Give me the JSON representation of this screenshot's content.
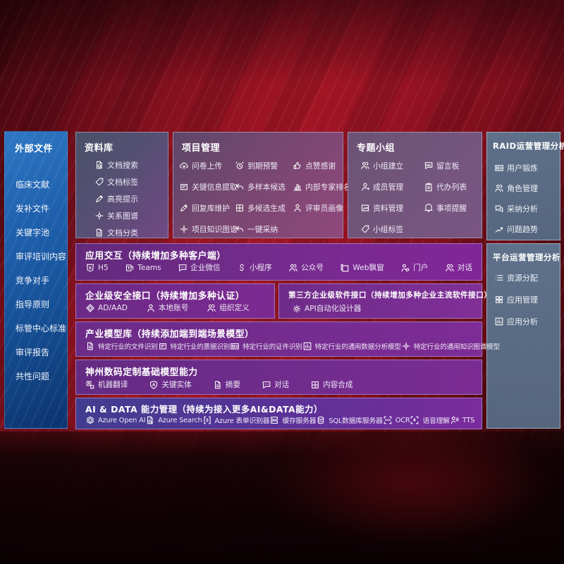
{
  "sidebar": {
    "title": "外部文件",
    "items": [
      "临床文献",
      "发补文件",
      "关键字池",
      "审评培训内容",
      "竞争对手",
      "指导原则",
      "标管中心标准",
      "审评报告",
      "共性问题"
    ]
  },
  "library": {
    "title": "资料库",
    "items": [
      {
        "icon": "doc-search-icon",
        "label": "文档搜索"
      },
      {
        "icon": "doc-tag-icon",
        "label": "文档标签"
      },
      {
        "icon": "highlight-pen-icon",
        "label": "高亮提示"
      },
      {
        "icon": "relation-graph-icon",
        "label": "关系图谱"
      },
      {
        "icon": "doc-classify-icon",
        "label": "文档分类"
      }
    ]
  },
  "project": {
    "title": "项目管理",
    "col1": [
      {
        "icon": "survey-upload-icon",
        "label": "问卷上传"
      },
      {
        "icon": "info-extract-icon",
        "label": "关键信息提取"
      },
      {
        "icon": "reply-maintain-icon",
        "label": "回复库维护"
      },
      {
        "icon": "project-graph-icon",
        "label": "项目知识图谱"
      }
    ],
    "col2": [
      {
        "icon": "due-alarm-icon",
        "label": "到期预警"
      },
      {
        "icon": "multi-sample-icon",
        "label": "多样本候选"
      },
      {
        "icon": "multi-generate-icon",
        "label": "多候选生成"
      },
      {
        "icon": "one-click-adopt-icon",
        "label": "一键采纳"
      }
    ],
    "col3": [
      {
        "icon": "thumbs-up-icon",
        "label": "点赞感谢"
      },
      {
        "icon": "expert-rank-icon",
        "label": "内部专家排名"
      },
      {
        "icon": "reviewer-portrait-icon",
        "label": "评审员画像"
      }
    ]
  },
  "groups": {
    "title": "专题小组",
    "col1": [
      {
        "icon": "group-create-icon",
        "label": "小组建立"
      },
      {
        "icon": "member-manage-icon",
        "label": "成员管理"
      },
      {
        "icon": "data-manage-icon",
        "label": "资料管理"
      },
      {
        "icon": "group-tag-icon",
        "label": "小组标签"
      }
    ],
    "col2": [
      {
        "icon": "message-board-icon",
        "label": "留言板"
      },
      {
        "icon": "todo-list-icon",
        "label": "代办列表"
      },
      {
        "icon": "reminder-bell-icon",
        "label": "事项提醒"
      }
    ]
  },
  "raid": {
    "title": "RAID运营管理分析",
    "items": [
      {
        "icon": "user-card-icon",
        "label": "用户锻炼"
      },
      {
        "icon": "role-manage-icon",
        "label": "角色管理"
      },
      {
        "icon": "adopt-analysis-icon",
        "label": "采纳分析"
      },
      {
        "icon": "issue-trend-icon",
        "label": "问题趋势"
      }
    ]
  },
  "platform": {
    "title": "平台运营管理分析",
    "items": [
      {
        "icon": "resource-list-icon",
        "label": "资源分配"
      },
      {
        "icon": "app-grid-icon",
        "label": "应用管理"
      },
      {
        "icon": "app-analysis-icon",
        "label": "应用分析"
      }
    ]
  },
  "rows": {
    "interaction": {
      "title": "应用交互（持续增加多种客户端）",
      "items": [
        {
          "icon": "h5-icon",
          "label": "H5"
        },
        {
          "icon": "teams-icon",
          "label": "Teams"
        },
        {
          "icon": "wechat-work-icon",
          "label": "企业微信"
        },
        {
          "icon": "miniprogram-icon",
          "label": "小程序"
        },
        {
          "icon": "official-account-icon",
          "label": "公众号"
        },
        {
          "icon": "web-window-icon",
          "label": "Web飘窗"
        },
        {
          "icon": "portal-icon",
          "label": "门户"
        },
        {
          "icon": "dialog-icon",
          "label": "对话"
        }
      ]
    },
    "security": {
      "title": "企业级安全接口（持续增加多种认证）",
      "items": [
        {
          "icon": "ad-aad-icon",
          "label": "AD/AAD"
        },
        {
          "icon": "local-account-icon",
          "label": "本地账号"
        },
        {
          "icon": "org-define-icon",
          "label": "组织定义"
        }
      ]
    },
    "thirdparty": {
      "title": "第三方企业级软件接口（持续增加多种企业主流软件接口）",
      "items": [
        {
          "icon": "api-designer-icon",
          "label": "API自动化设计器"
        }
      ]
    },
    "models": {
      "title": "产业模型库（持续添加端到端场景模型）",
      "items": [
        {
          "icon": "file-recog-icon",
          "label": "特定行业的文件识别"
        },
        {
          "icon": "bill-recog-icon",
          "label": "特定行业的票据识别"
        },
        {
          "icon": "cert-recog-icon",
          "label": "特定行业的证件识别"
        },
        {
          "icon": "data-analysis-model-icon",
          "label": "特定行业的通用数据分析模型"
        },
        {
          "icon": "knowledge-graph-model-icon",
          "label": "特定行业的通用知识图谱模型"
        }
      ]
    },
    "foundation": {
      "title": "神州数码定制基础模型能力",
      "items": [
        {
          "icon": "machine-translate-icon",
          "label": "机器翻译"
        },
        {
          "icon": "key-entity-icon",
          "label": "关键实体"
        },
        {
          "icon": "summary-icon",
          "label": "摘要"
        },
        {
          "icon": "dialog-chat-icon",
          "label": "对话"
        },
        {
          "icon": "content-compose-icon",
          "label": "内容合成"
        }
      ]
    },
    "aidata": {
      "title": "AI & DATA 能力管理（持续为接入更多AI&DATA能力）",
      "items": [
        {
          "icon": "openai-icon",
          "label": "Azure Open AI"
        },
        {
          "icon": "azure-search-icon",
          "label": "Azure Search"
        },
        {
          "icon": "form-recognizer-icon",
          "label": "Azure 表单识别器"
        },
        {
          "icon": "cache-server-icon",
          "label": "缓存服务器"
        },
        {
          "icon": "sql-db-icon",
          "label": "SQL数据库服务器"
        },
        {
          "icon": "ocr-icon",
          "label": "OCR"
        },
        {
          "icon": "speech-understand-icon",
          "label": "语音理解"
        },
        {
          "icon": "tts-icon",
          "label": "TTS"
        }
      ]
    }
  },
  "colors": {
    "background_red": "#a31524",
    "sidebar_blue": "#1f60ad",
    "grey_panel": "#5e7089",
    "purple_row": "#742b8c",
    "indigo_row": "#413d90"
  }
}
